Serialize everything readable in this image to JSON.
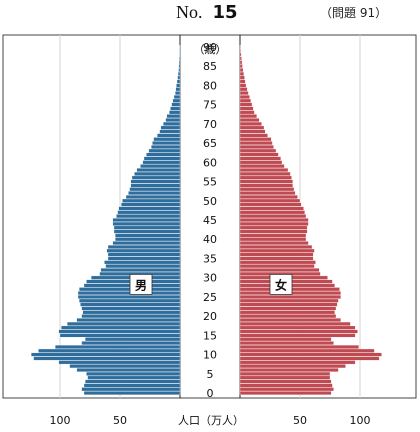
{
  "header": {
    "no_label": "No.",
    "no_value": "15",
    "problem": "（問題 91）"
  },
  "chart_data": {
    "type": "bar",
    "orientation": "horizontal-population-pyramid",
    "unit_label": "（歳）",
    "age_ticks": [
      "0",
      "5",
      "10",
      "15",
      "20",
      "25",
      "30",
      "35",
      "40",
      "45",
      "50",
      "55",
      "60",
      "65",
      "70",
      "75",
      "80",
      "85",
      "90"
    ],
    "x_tick_labels": [
      "100",
      "50",
      "50",
      "100"
    ],
    "xlabel": "人口（万人）",
    "xlim": [
      0,
      120
    ],
    "grid": true,
    "series": [
      {
        "name": "男",
        "color": "#2f6e9c",
        "values": [
          80,
          82,
          80,
          79,
          77,
          78,
          86,
          92,
          101,
          122,
          124,
          118,
          104,
          82,
          79,
          100,
          101,
          99,
          94,
          86,
          82,
          81,
          82,
          83,
          84,
          85,
          85,
          84,
          80,
          78,
          74,
          67,
          66,
          62,
          63,
          60,
          60,
          61,
          60,
          56,
          54,
          54,
          55,
          55,
          56,
          56,
          53,
          52,
          51,
          49,
          48,
          45,
          43,
          42,
          41,
          41,
          40,
          38,
          36,
          33,
          31,
          30,
          28,
          26,
          24,
          23,
          22,
          19,
          17,
          16,
          14,
          12,
          11,
          9,
          8,
          7,
          6,
          5,
          4,
          3.5,
          3,
          2.5,
          2,
          1.6,
          1.2,
          1,
          0.8,
          0.6,
          0.4,
          0.3,
          0.2
        ]
      },
      {
        "name": "女",
        "color": "#c04a52",
        "values": [
          76,
          78,
          77,
          76,
          75,
          75,
          82,
          88,
          96,
          116,
          118,
          112,
          99,
          78,
          76,
          96,
          98,
          96,
          92,
          84,
          80,
          79,
          80,
          81,
          82,
          84,
          84,
          83,
          79,
          77,
          73,
          67,
          66,
          62,
          63,
          61,
          61,
          62,
          60,
          57,
          55,
          55,
          56,
          56,
          57,
          57,
          55,
          54,
          53,
          51,
          50,
          48,
          46,
          45,
          44,
          44,
          43,
          42,
          40,
          37,
          35,
          34,
          32,
          30,
          28,
          27,
          26,
          23,
          21,
          20,
          18,
          16,
          14,
          12,
          11,
          10,
          9,
          8,
          7,
          6,
          5,
          4.4,
          3.8,
          3.2,
          2.6,
          2.1,
          1.7,
          1.3,
          1,
          0.7,
          0.5
        ]
      }
    ]
  }
}
